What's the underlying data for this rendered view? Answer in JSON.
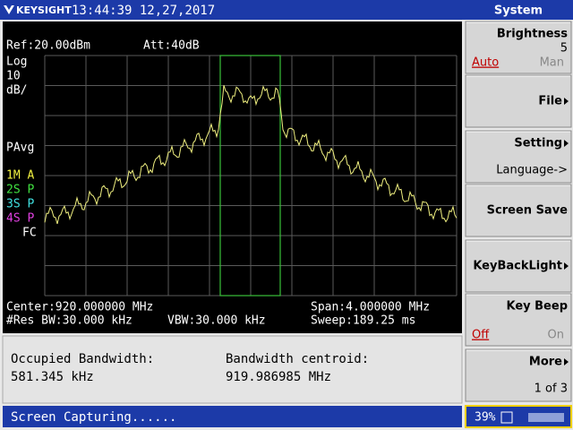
{
  "header": {
    "brand": "KEYSIGHT",
    "datetime": "13:44:39 12,27,2017",
    "menu_title": "System"
  },
  "screen": {
    "ref": "Ref:20.00dBm",
    "att": "Att:40dB",
    "scale": [
      "Log",
      "10",
      "dB/"
    ],
    "avg": "PAvg",
    "traces": [
      "1M A",
      "2S P",
      "3S P",
      "4S P"
    ],
    "fc": "FC",
    "center": "Center:920.000000 MHz",
    "span": "Span:4.000000 MHz",
    "rbw": "#Res BW:30.000 kHz",
    "vbw": "VBW:30.000 kHz",
    "sweep": "Sweep:189.25 ms"
  },
  "results": {
    "occupied_label": "Occupied Bandwidth:",
    "occupied_value": "581.345 kHz",
    "centroid_label": "Bandwidth centroid:",
    "centroid_value": "919.986985 MHz"
  },
  "status": {
    "message": "Screen Capturing......",
    "battery": "39%"
  },
  "softkeys": [
    {
      "label": "Brightness",
      "value": "5",
      "options": [
        "Auto",
        "Man"
      ]
    },
    {
      "label": "File"
    },
    {
      "label": "Setting",
      "sub": "Language->"
    },
    {
      "label": "Screen Save"
    },
    {
      "label": "KeyBackLight"
    },
    {
      "label": "Key Beep",
      "options": [
        "Off",
        "On"
      ]
    },
    {
      "label": "More",
      "sub": "1 of 3"
    }
  ]
}
